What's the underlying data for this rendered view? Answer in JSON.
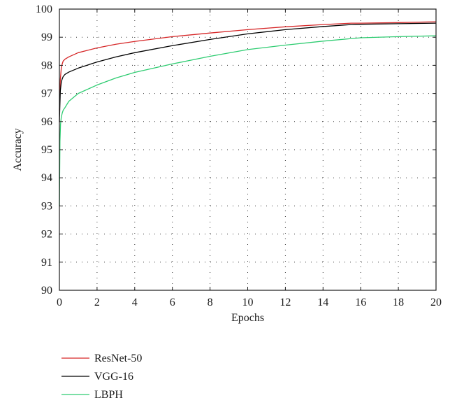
{
  "chart_data": {
    "type": "line",
    "title": "",
    "xlabel": "Epochs",
    "ylabel": "Accuracy",
    "xlim": [
      0,
      20
    ],
    "ylim": [
      90,
      100
    ],
    "xticks": [
      "0",
      "2",
      "4",
      "6",
      "8",
      "10",
      "12",
      "14",
      "16",
      "18",
      "20"
    ],
    "yticks": [
      "90",
      "91",
      "92",
      "93",
      "94",
      "95",
      "96",
      "97",
      "98",
      "99",
      "100"
    ],
    "grid": true,
    "legend_position": "bottom-left",
    "series": [
      {
        "name": "ResNet-50",
        "color": "#d62728",
        "x": [
          0,
          0.05,
          0.1,
          0.15,
          0.2,
          0.3,
          0.5,
          1,
          2,
          3,
          4,
          6,
          8,
          10,
          12,
          14,
          15.5,
          16,
          18,
          20
        ],
        "y": [
          96.4,
          97.5,
          97.9,
          98.05,
          98.15,
          98.22,
          98.3,
          98.45,
          98.62,
          98.75,
          98.85,
          99.02,
          99.15,
          99.27,
          99.37,
          99.45,
          99.5,
          99.5,
          99.52,
          99.55
        ]
      },
      {
        "name": "VGG-16",
        "color": "#000000",
        "x": [
          0,
          0.05,
          0.1,
          0.15,
          0.2,
          0.3,
          0.5,
          1,
          2,
          3,
          4,
          6,
          8,
          10,
          12,
          14,
          15.5,
          16,
          18,
          20
        ],
        "y": [
          96.0,
          97.1,
          97.4,
          97.52,
          97.6,
          97.68,
          97.76,
          97.9,
          98.12,
          98.3,
          98.45,
          98.7,
          98.92,
          99.12,
          99.27,
          99.38,
          99.45,
          99.46,
          99.48,
          99.5
        ]
      },
      {
        "name": "LBPH",
        "color": "#2ecc71",
        "x": [
          0,
          0.03,
          0.06,
          0.1,
          0.15,
          0.2,
          0.3,
          0.5,
          1,
          2,
          3,
          4,
          6,
          8,
          10,
          12,
          14,
          16,
          18,
          20
        ],
        "y": [
          93.0,
          95.3,
          95.9,
          96.15,
          96.3,
          96.4,
          96.5,
          96.72,
          97.0,
          97.3,
          97.55,
          97.75,
          98.05,
          98.32,
          98.56,
          98.72,
          98.86,
          98.98,
          99.02,
          99.05
        ]
      }
    ]
  }
}
